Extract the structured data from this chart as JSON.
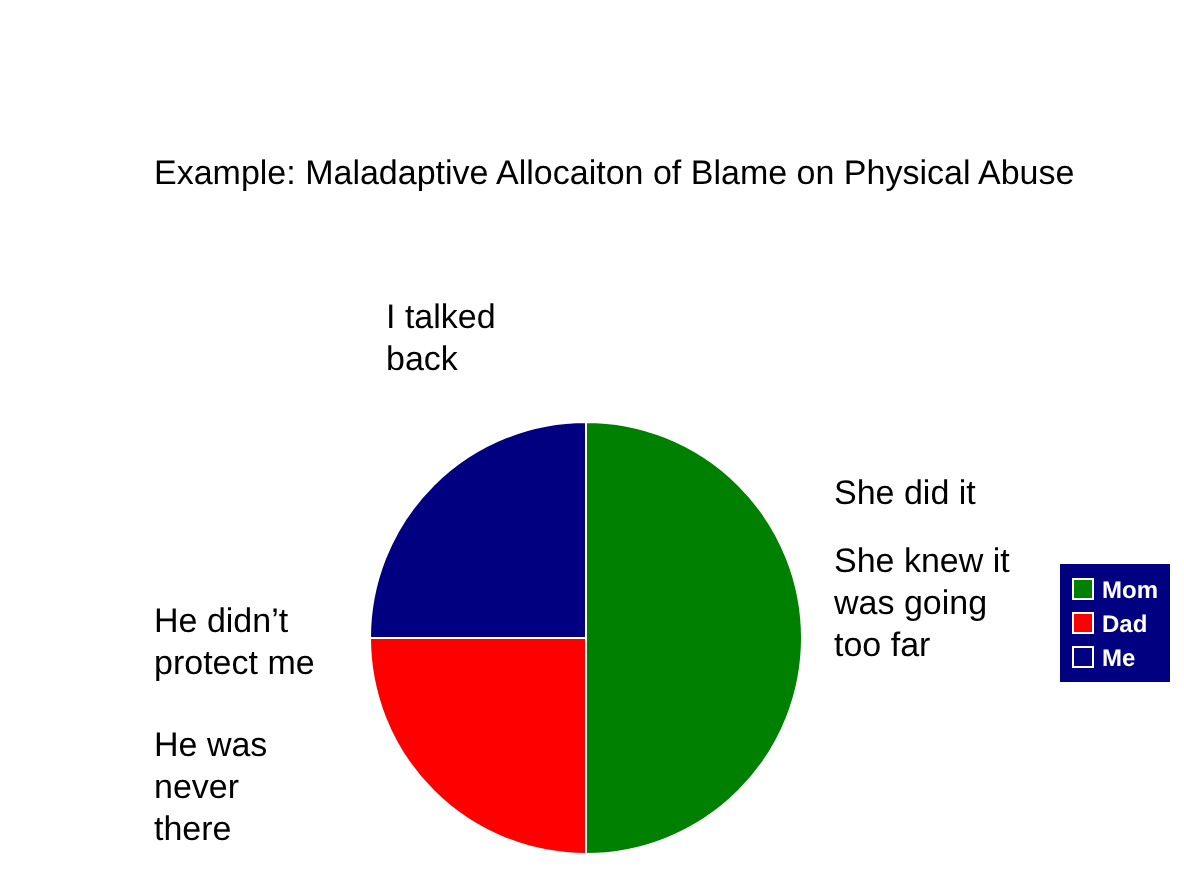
{
  "chart_data": {
    "type": "pie",
    "title": "Example: Maladaptive Allocaiton of Blame on Physical Abuse",
    "categories": [
      "Mom",
      "Dad",
      "Me"
    ],
    "values": [
      50,
      25,
      25
    ],
    "colors": [
      "#008000",
      "#ff0000",
      "#000080"
    ],
    "legend": "right",
    "annotations": [
      "I talked back",
      "She did it",
      "She knew it was going too far",
      "He didn’t protect me",
      "He was never there"
    ]
  }
}
